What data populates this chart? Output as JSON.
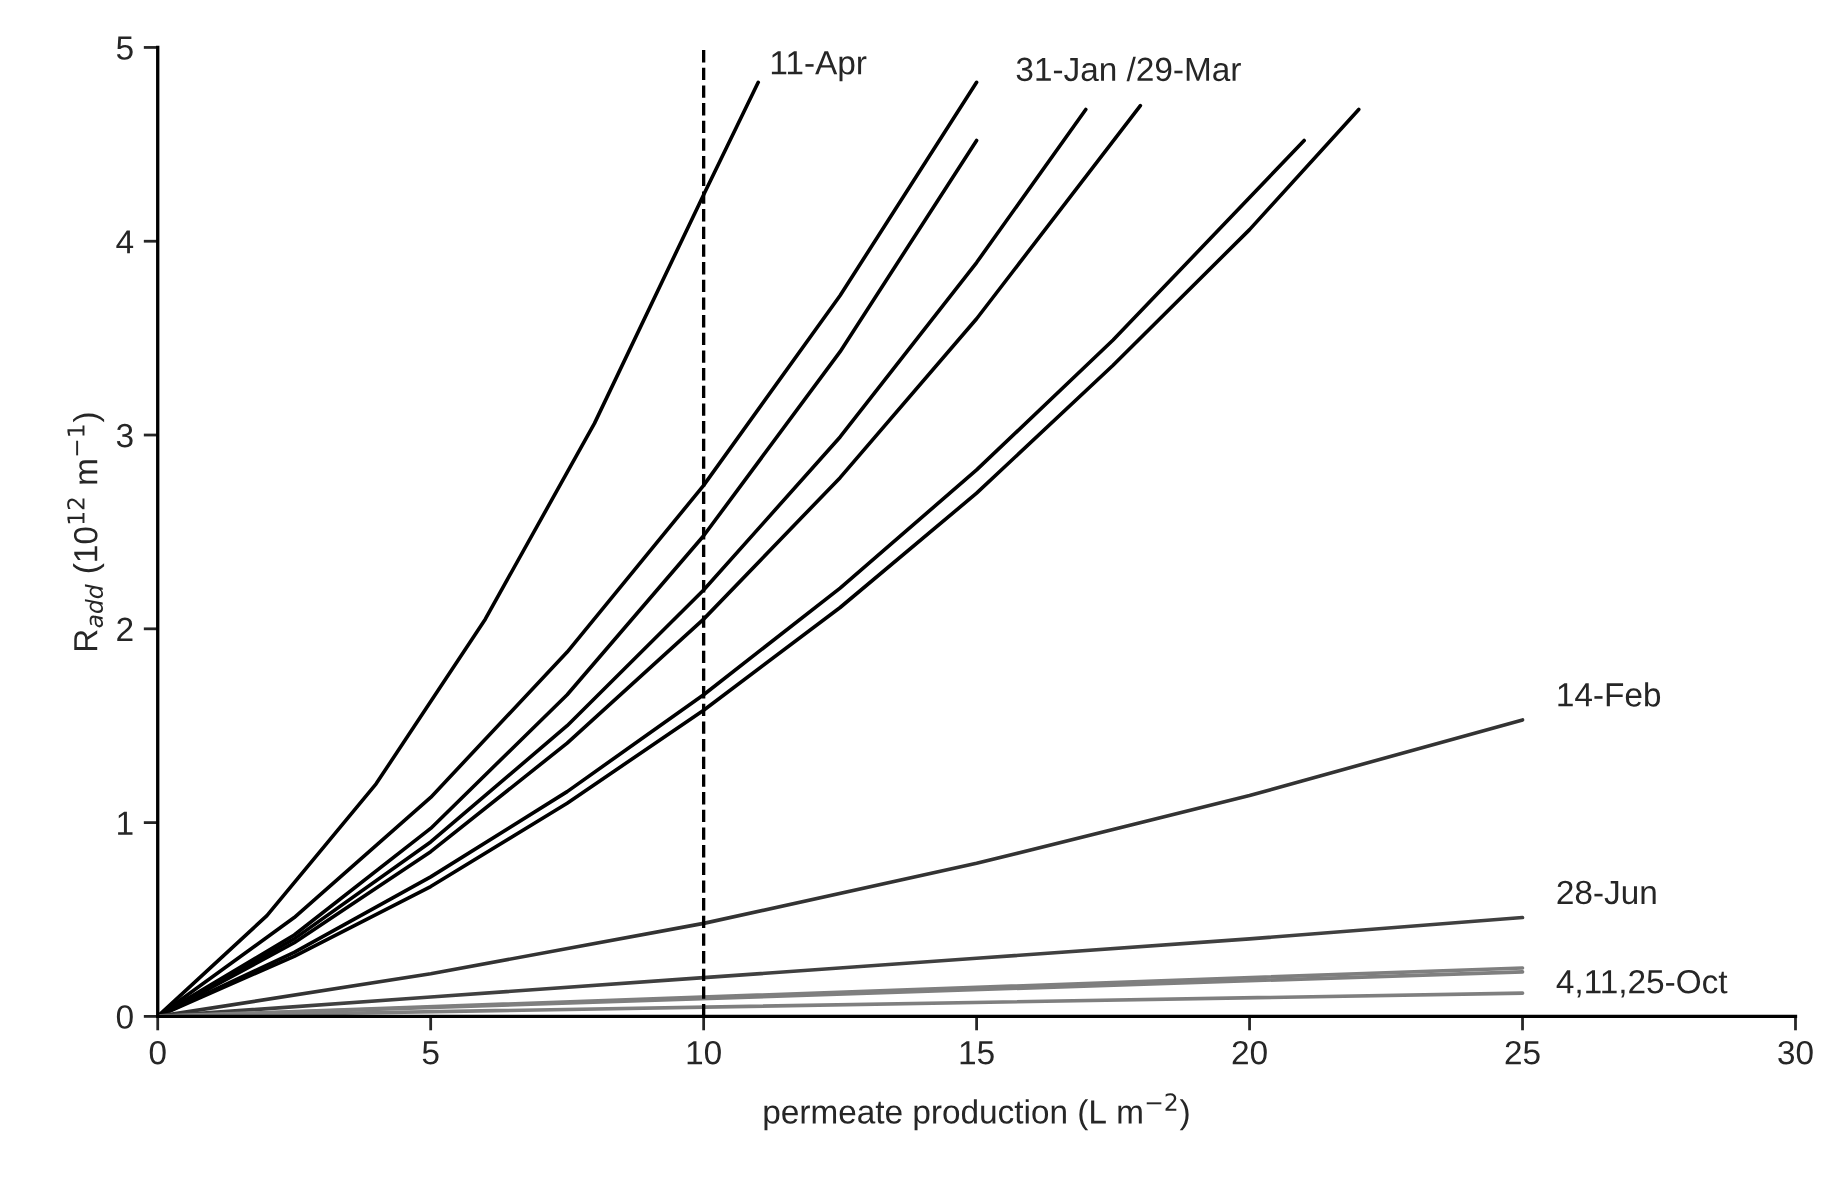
{
  "chart_data": {
    "type": "line",
    "xlabel": "permeate production (L m$^{−2}$)",
    "ylabel": "R$_{add}$ (10$^{12}$ m$^{−1}$)",
    "xlim": [
      0,
      30
    ],
    "ylim": [
      0,
      5
    ],
    "xticks": [
      0,
      5,
      10,
      15,
      20,
      25,
      30
    ],
    "yticks": [
      0,
      1,
      2,
      3,
      4,
      5
    ],
    "grid": false,
    "legend": false,
    "marker": "none",
    "line_style": "solid",
    "series": [
      {
        "color": "#000000",
        "x": [
          0,
          2,
          4,
          6,
          8,
          10,
          11
        ],
        "values": [
          0,
          0.52,
          1.2,
          2.05,
          3.06,
          4.24,
          4.82
        ]
      },
      {
        "color": "#000000",
        "x": [
          0,
          2.5,
          5,
          7.5,
          10,
          12.5,
          15
        ],
        "values": [
          0,
          0.51,
          1.13,
          1.88,
          2.74,
          3.72,
          4.82
        ]
      },
      {
        "color": "#000000",
        "x": [
          0,
          2.5,
          5,
          7.5,
          10,
          12.5,
          15
        ],
        "values": [
          0,
          0.42,
          0.97,
          1.66,
          2.48,
          3.43,
          4.52
        ]
      },
      {
        "color": "#000000",
        "x": [
          0,
          2.5,
          5,
          7.5,
          10,
          12.5,
          15,
          17
        ],
        "values": [
          0,
          0.4,
          0.9,
          1.5,
          2.2,
          2.99,
          3.89,
          4.68
        ]
      },
      {
        "color": "#000000",
        "x": [
          0,
          2.5,
          5,
          7.5,
          10,
          12.5,
          15,
          18
        ],
        "values": [
          0,
          0.38,
          0.85,
          1.41,
          2.05,
          2.78,
          3.6,
          4.7
        ]
      },
      {
        "color": "#000000",
        "x": [
          0,
          2.5,
          5,
          7.5,
          10,
          12.5,
          15,
          17.5,
          21
        ],
        "values": [
          0,
          0.33,
          0.72,
          1.16,
          1.66,
          2.21,
          2.82,
          3.49,
          4.52
        ]
      },
      {
        "color": "#000000",
        "x": [
          0,
          2.5,
          5,
          7.5,
          10,
          12.5,
          15,
          17.5,
          20,
          22
        ],
        "values": [
          0,
          0.31,
          0.67,
          1.1,
          1.58,
          2.11,
          2.7,
          3.36,
          4.06,
          4.68
        ]
      },
      {
        "color": "#333333",
        "x": [
          0,
          5,
          10,
          15,
          20,
          25
        ],
        "values": [
          0,
          0.22,
          0.48,
          0.79,
          1.14,
          1.53
        ]
      },
      {
        "color": "#404040",
        "x": [
          0,
          5,
          10,
          15,
          20,
          25
        ],
        "values": [
          0,
          0.1,
          0.2,
          0.3,
          0.4,
          0.51
        ]
      },
      {
        "color": "#7f7f7f",
        "x": [
          0,
          25
        ],
        "values": [
          0,
          0.25
        ]
      },
      {
        "color": "#7f7f7f",
        "x": [
          0,
          25
        ],
        "values": [
          0,
          0.23
        ]
      },
      {
        "color": "#7f7f7f",
        "x": [
          0,
          25
        ],
        "values": [
          0,
          0.12
        ]
      }
    ],
    "ref_lines": [
      {
        "axis": "x",
        "value": 10,
        "color": "#000000",
        "line_style": "dashed"
      }
    ],
    "annotations": [
      {
        "text": "11-Apr",
        "x": 11,
        "y": 4.82
      },
      {
        "text": "31-Jan /29-Mar",
        "x": 18,
        "y": 4.7
      },
      {
        "text": "14-Feb",
        "x": 25,
        "y": 1.53
      },
      {
        "text": "28-Jun",
        "x": 25,
        "y": 0.51
      },
      {
        "text": "4,11,25-Oct",
        "x": 25,
        "y": 0.25
      }
    ]
  }
}
